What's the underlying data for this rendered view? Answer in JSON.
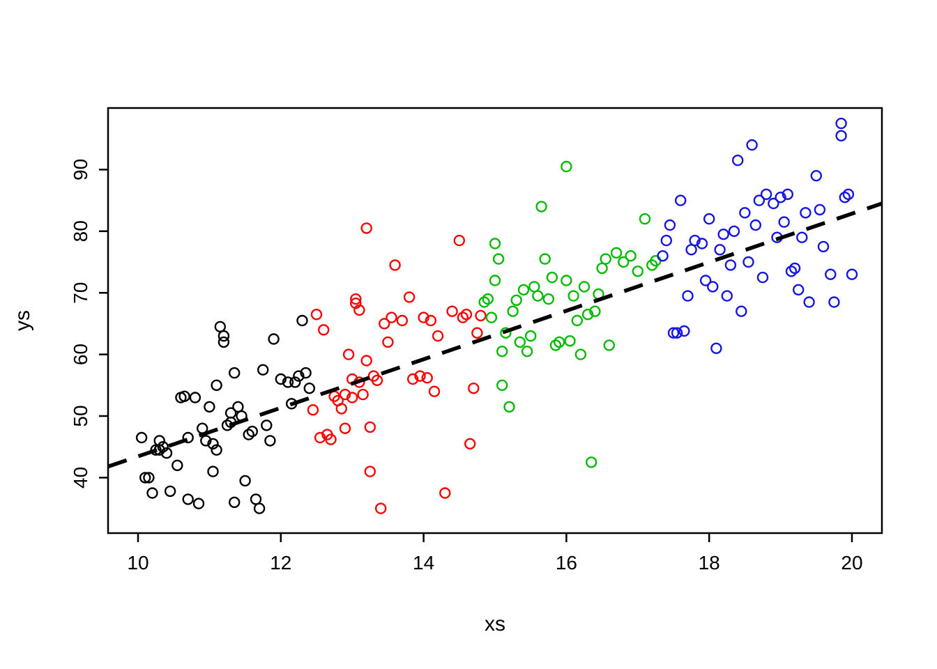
{
  "figure": {
    "background": "#FFFFFF"
  },
  "chart_data": {
    "type": "scatter",
    "title": "",
    "xlabel": "xs",
    "ylabel": "ys",
    "xlim": [
      9.58,
      20.42
    ],
    "ylim": [
      31,
      100
    ],
    "x_ticks": [
      10,
      12,
      14,
      16,
      18,
      20
    ],
    "y_ticks": [
      40,
      50,
      60,
      70,
      80,
      90
    ],
    "grid": false,
    "legend_position": "none",
    "marker": {
      "shape": "open-circle",
      "radius": 7,
      "stroke_width": 2.4
    },
    "trend_line": {
      "style": "dashed",
      "color": "#000000",
      "width": 5.5,
      "x1": 9.58,
      "y1": 41.8,
      "x2": 20.42,
      "y2": 84.5
    },
    "series": [
      {
        "name": "group-black",
        "color": "#000000",
        "points": [
          [
            10.05,
            46.5
          ],
          [
            10.1,
            40
          ],
          [
            10.15,
            40
          ],
          [
            10.2,
            37.5
          ],
          [
            10.25,
            44.5
          ],
          [
            10.3,
            46
          ],
          [
            10.3,
            44.5
          ],
          [
            10.35,
            45
          ],
          [
            10.4,
            44
          ],
          [
            10.45,
            37.8
          ],
          [
            10.55,
            42
          ],
          [
            10.6,
            53
          ],
          [
            10.65,
            53.2
          ],
          [
            10.7,
            46.5
          ],
          [
            10.7,
            36.5
          ],
          [
            10.8,
            53
          ],
          [
            10.85,
            35.8
          ],
          [
            10.9,
            48
          ],
          [
            10.95,
            46
          ],
          [
            11.0,
            51.5
          ],
          [
            11.05,
            45.5
          ],
          [
            11.05,
            41
          ],
          [
            11.1,
            44.5
          ],
          [
            11.1,
            55
          ],
          [
            11.15,
            64.5
          ],
          [
            11.2,
            63
          ],
          [
            11.2,
            62
          ],
          [
            11.25,
            48.5
          ],
          [
            11.3,
            50.5
          ],
          [
            11.3,
            49
          ],
          [
            11.35,
            57
          ],
          [
            11.35,
            36
          ],
          [
            11.4,
            51.5
          ],
          [
            11.45,
            50
          ],
          [
            11.5,
            39.5
          ],
          [
            11.55,
            47
          ],
          [
            11.6,
            47.5
          ],
          [
            11.65,
            36.5
          ],
          [
            11.7,
            35
          ],
          [
            11.75,
            57.5
          ],
          [
            11.8,
            48.5
          ],
          [
            11.85,
            46
          ],
          [
            11.9,
            62.5
          ],
          [
            12.0,
            56
          ],
          [
            12.1,
            55.5
          ],
          [
            12.15,
            52
          ],
          [
            12.2,
            55.5
          ],
          [
            12.25,
            56.5
          ],
          [
            12.3,
            65.5
          ],
          [
            12.35,
            57
          ],
          [
            12.4,
            54.5
          ]
        ]
      },
      {
        "name": "group-red",
        "color": "#FF0000",
        "points": [
          [
            12.45,
            51
          ],
          [
            12.5,
            66.5
          ],
          [
            12.55,
            46.5
          ],
          [
            12.6,
            64
          ],
          [
            12.65,
            47
          ],
          [
            12.7,
            46.2
          ],
          [
            12.75,
            53.2
          ],
          [
            12.8,
            52.5
          ],
          [
            12.85,
            51.2
          ],
          [
            12.9,
            48
          ],
          [
            12.9,
            53.5
          ],
          [
            12.95,
            60
          ],
          [
            13.0,
            53
          ],
          [
            13.0,
            56
          ],
          [
            13.05,
            69
          ],
          [
            13.05,
            68.3
          ],
          [
            13.1,
            67.2
          ],
          [
            13.1,
            55.5
          ],
          [
            13.15,
            53.5
          ],
          [
            13.2,
            80.5
          ],
          [
            13.2,
            59
          ],
          [
            13.25,
            41
          ],
          [
            13.25,
            48.2
          ],
          [
            13.3,
            56.5
          ],
          [
            13.35,
            55.8
          ],
          [
            13.4,
            35
          ],
          [
            13.45,
            65
          ],
          [
            13.5,
            62
          ],
          [
            13.55,
            66
          ],
          [
            13.6,
            74.5
          ],
          [
            13.7,
            65.5
          ],
          [
            13.8,
            69.3
          ],
          [
            13.85,
            56
          ],
          [
            13.95,
            56.5
          ],
          [
            14.0,
            66
          ],
          [
            14.05,
            56.2
          ],
          [
            14.1,
            65.5
          ],
          [
            14.15,
            54
          ],
          [
            14.2,
            63
          ],
          [
            14.3,
            37.5
          ],
          [
            14.4,
            67
          ],
          [
            14.5,
            78.5
          ],
          [
            14.55,
            66
          ],
          [
            14.6,
            66.5
          ],
          [
            14.65,
            45.5
          ],
          [
            14.7,
            54.5
          ],
          [
            14.75,
            63.5
          ],
          [
            14.8,
            66.3
          ]
        ]
      },
      {
        "name": "group-green",
        "color": "#00BB00",
        "points": [
          [
            14.85,
            68.5
          ],
          [
            14.9,
            69
          ],
          [
            14.95,
            66
          ],
          [
            15.0,
            78
          ],
          [
            15.0,
            72
          ],
          [
            15.05,
            75.5
          ],
          [
            15.1,
            60.5
          ],
          [
            15.1,
            55
          ],
          [
            15.15,
            63.5
          ],
          [
            15.2,
            51.5
          ],
          [
            15.25,
            67
          ],
          [
            15.3,
            68.8
          ],
          [
            15.35,
            62
          ],
          [
            15.4,
            70.5
          ],
          [
            15.45,
            60.5
          ],
          [
            15.5,
            63
          ],
          [
            15.55,
            71
          ],
          [
            15.6,
            69.5
          ],
          [
            15.65,
            84
          ],
          [
            15.7,
            75.5
          ],
          [
            15.75,
            69
          ],
          [
            15.8,
            72.5
          ],
          [
            15.85,
            61.5
          ],
          [
            15.9,
            62
          ],
          [
            16.0,
            90.5
          ],
          [
            16.0,
            72
          ],
          [
            16.05,
            62.2
          ],
          [
            16.1,
            69.5
          ],
          [
            16.15,
            65.5
          ],
          [
            16.2,
            60
          ],
          [
            16.25,
            71
          ],
          [
            16.3,
            66.5
          ],
          [
            16.35,
            42.5
          ],
          [
            16.4,
            67
          ],
          [
            16.45,
            69.8
          ],
          [
            16.5,
            74
          ],
          [
            16.55,
            75.5
          ],
          [
            16.6,
            61.5
          ],
          [
            16.7,
            76.5
          ],
          [
            16.8,
            75
          ],
          [
            16.9,
            76
          ],
          [
            17.0,
            73.5
          ],
          [
            17.1,
            82
          ],
          [
            17.2,
            74.5
          ],
          [
            17.25,
            75.2
          ]
        ]
      },
      {
        "name": "group-blue",
        "color": "#1414E6",
        "points": [
          [
            17.35,
            76
          ],
          [
            17.4,
            78.5
          ],
          [
            17.45,
            81
          ],
          [
            17.5,
            63.5
          ],
          [
            17.55,
            63.5
          ],
          [
            17.6,
            85
          ],
          [
            17.65,
            63.8
          ],
          [
            17.7,
            69.5
          ],
          [
            17.75,
            77
          ],
          [
            17.8,
            78.5
          ],
          [
            17.9,
            78
          ],
          [
            17.95,
            72
          ],
          [
            18.0,
            82
          ],
          [
            18.05,
            71
          ],
          [
            18.1,
            61
          ],
          [
            18.15,
            77
          ],
          [
            18.2,
            79.5
          ],
          [
            18.25,
            69.5
          ],
          [
            18.3,
            74.5
          ],
          [
            18.35,
            80
          ],
          [
            18.4,
            91.5
          ],
          [
            18.45,
            67
          ],
          [
            18.5,
            83
          ],
          [
            18.55,
            75
          ],
          [
            18.6,
            94
          ],
          [
            18.65,
            81
          ],
          [
            18.7,
            85
          ],
          [
            18.75,
            72.5
          ],
          [
            18.8,
            86
          ],
          [
            18.9,
            84.5
          ],
          [
            18.95,
            79
          ],
          [
            19.0,
            85.5
          ],
          [
            19.05,
            81.5
          ],
          [
            19.1,
            86
          ],
          [
            19.15,
            73.5
          ],
          [
            19.2,
            74
          ],
          [
            19.25,
            70.5
          ],
          [
            19.3,
            79
          ],
          [
            19.35,
            83
          ],
          [
            19.4,
            68.5
          ],
          [
            19.5,
            89
          ],
          [
            19.55,
            83.5
          ],
          [
            19.6,
            77.5
          ],
          [
            19.7,
            73
          ],
          [
            19.75,
            68.5
          ],
          [
            19.85,
            97.5
          ],
          [
            19.85,
            95.5
          ],
          [
            19.9,
            85.5
          ],
          [
            19.95,
            86
          ],
          [
            20.0,
            73
          ]
        ]
      }
    ]
  }
}
